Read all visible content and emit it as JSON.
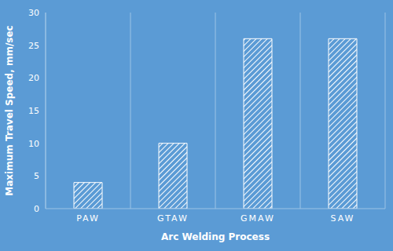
{
  "chart_data": {
    "type": "bar",
    "x_label": "Arc Welding Process",
    "y_label": "Maximum Travel Speed, mm/sec",
    "categories": [
      "PAW",
      "GTAW",
      "GMAW",
      "SAW"
    ],
    "values": [
      4,
      10,
      26,
      26
    ],
    "color": "#ffffff",
    "ylim": [
      0,
      30
    ],
    "yticks": [
      0,
      5,
      10,
      15,
      20,
      25,
      30
    ],
    "grid": true
  }
}
